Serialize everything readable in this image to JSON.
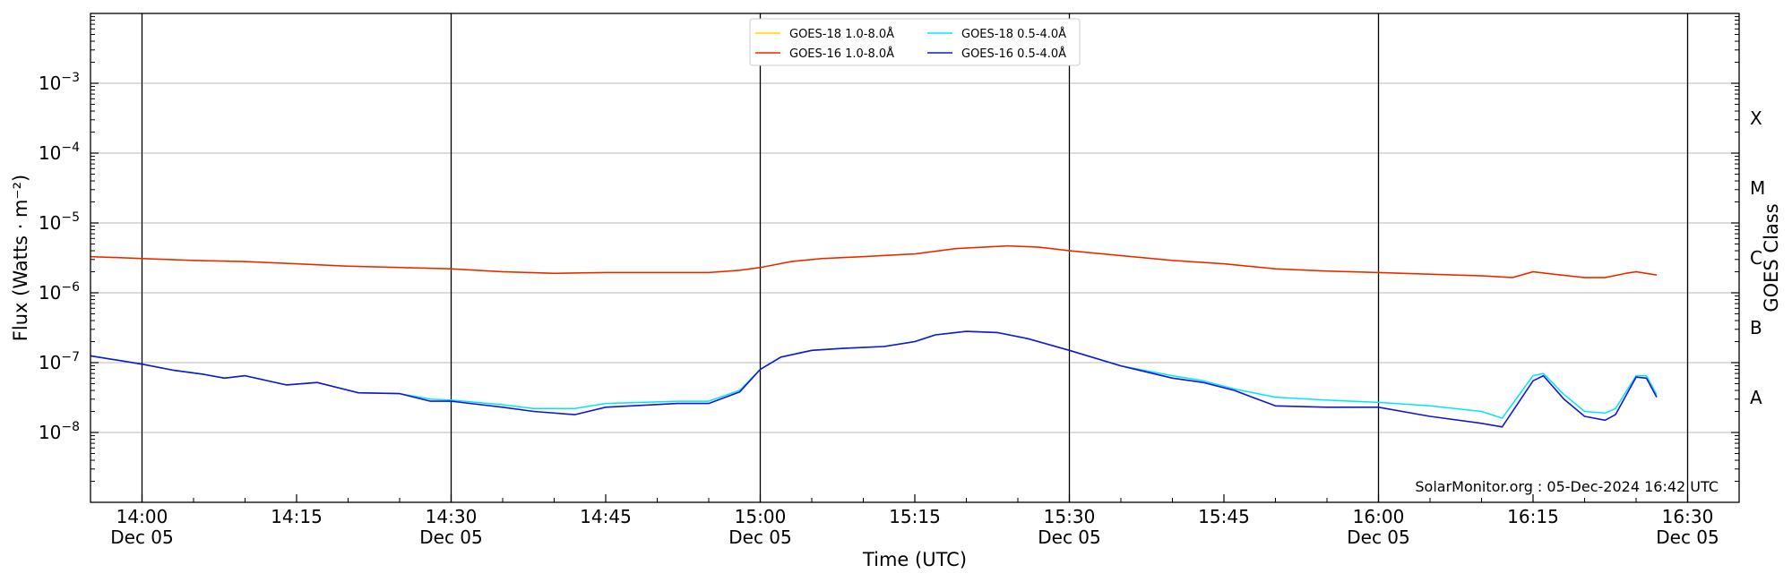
{
  "chart_data": {
    "type": "line",
    "xlabel": "Time (UTC)",
    "ylabel": "Flux (Watts · m⁻²)",
    "y_scale": "log",
    "ylim": [
      1e-09,
      0.01
    ],
    "xlim": [
      "2024-12-05T13:55",
      "2024-12-05T16:35"
    ],
    "y_ticks": [
      {
        "value": 1e-08,
        "label_base": "10",
        "label_exp": "−8"
      },
      {
        "value": 1e-07,
        "label_base": "10",
        "label_exp": "−7"
      },
      {
        "value": 1e-06,
        "label_base": "10",
        "label_exp": "−6"
      },
      {
        "value": 1e-05,
        "label_base": "10",
        "label_exp": "−5"
      },
      {
        "value": 0.0001,
        "label_base": "10",
        "label_exp": "−4"
      },
      {
        "value": 0.001,
        "label_base": "10",
        "label_exp": "−3"
      }
    ],
    "x_ticks": [
      {
        "time": "2024-12-05T14:00",
        "label": "14:00",
        "sublabel": "Dec 05"
      },
      {
        "time": "2024-12-05T14:15",
        "label": "14:15",
        "sublabel": ""
      },
      {
        "time": "2024-12-05T14:30",
        "label": "14:30",
        "sublabel": "Dec 05"
      },
      {
        "time": "2024-12-05T14:45",
        "label": "14:45",
        "sublabel": ""
      },
      {
        "time": "2024-12-05T15:00",
        "label": "15:00",
        "sublabel": "Dec 05"
      },
      {
        "time": "2024-12-05T15:15",
        "label": "15:15",
        "sublabel": ""
      },
      {
        "time": "2024-12-05T15:30",
        "label": "15:30",
        "sublabel": "Dec 05"
      },
      {
        "time": "2024-12-05T15:45",
        "label": "15:45",
        "sublabel": ""
      },
      {
        "time": "2024-12-05T16:00",
        "label": "16:00",
        "sublabel": "Dec 05"
      },
      {
        "time": "2024-12-05T16:15",
        "label": "16:15",
        "sublabel": ""
      },
      {
        "time": "2024-12-05T16:30",
        "label": "16:30",
        "sublabel": "Dec 05"
      }
    ],
    "vertical_lines": [
      "2024-12-05T14:00",
      "2024-12-05T14:30",
      "2024-12-05T15:00",
      "2024-12-05T15:30",
      "2024-12-05T16:00",
      "2024-12-05T16:30"
    ],
    "horizontal_grid": true,
    "right_axis": {
      "label": "GOES Class",
      "classes": [
        {
          "name": "A",
          "flux": 3.16e-08
        },
        {
          "name": "B",
          "flux": 3.16e-07
        },
        {
          "name": "C",
          "flux": 3.16e-06
        },
        {
          "name": "M",
          "flux": 3.16e-05
        },
        {
          "name": "X",
          "flux": 0.000316
        }
      ]
    },
    "legend": {
      "placement": "top-center",
      "columns": 2
    },
    "annotation": "SolarMonitor.org : 05-Dec-2024 16:42 UTC",
    "series": [
      {
        "name": "GOES-18 1.0-8.0Å",
        "color": "#ffd700",
        "width": 1.5,
        "x": [
          "2024-12-05T13:55",
          "2024-12-05T14:00",
          "2024-12-05T14:05",
          "2024-12-05T14:10",
          "2024-12-05T14:15",
          "2024-12-05T14:20",
          "2024-12-05T14:25",
          "2024-12-05T14:30",
          "2024-12-05T14:35",
          "2024-12-05T14:40",
          "2024-12-05T14:45",
          "2024-12-05T14:50",
          "2024-12-05T14:55",
          "2024-12-05T14:58",
          "2024-12-05T15:00",
          "2024-12-05T15:03",
          "2024-12-05T15:06",
          "2024-12-05T15:10",
          "2024-12-05T15:15",
          "2024-12-05T15:19",
          "2024-12-05T15:24",
          "2024-12-05T15:27",
          "2024-12-05T15:30",
          "2024-12-05T15:35",
          "2024-12-05T15:40",
          "2024-12-05T15:45",
          "2024-12-05T15:50",
          "2024-12-05T15:55",
          "2024-12-05T16:00",
          "2024-12-05T16:05",
          "2024-12-05T16:10",
          "2024-12-05T16:13",
          "2024-12-05T16:15",
          "2024-12-05T16:17",
          "2024-12-05T16:20",
          "2024-12-05T16:22",
          "2024-12-05T16:24",
          "2024-12-05T16:25",
          "2024-12-05T16:27"
        ],
        "y": [
          3.3e-06,
          3.1e-06,
          2.9e-06,
          2.8e-06,
          2.6e-06,
          2.4e-06,
          2.3e-06,
          2.2e-06,
          2e-06,
          1.9e-06,
          1.95e-06,
          1.95e-06,
          1.95e-06,
          2.1e-06,
          2.3e-06,
          2.8e-06,
          3.1e-06,
          3.3e-06,
          3.6e-06,
          4.3e-06,
          4.7e-06,
          4.5e-06,
          4e-06,
          3.4e-06,
          2.9e-06,
          2.6e-06,
          2.2e-06,
          2.05e-06,
          1.95e-06,
          1.85e-06,
          1.75e-06,
          1.65e-06,
          2e-06,
          1.85e-06,
          1.65e-06,
          1.65e-06,
          1.9e-06,
          2e-06,
          1.8e-06
        ]
      },
      {
        "name": "GOES-16 1.0-8.0Å",
        "color": "#ee2200",
        "width": 1.5,
        "x": [
          "2024-12-05T13:55",
          "2024-12-05T14:00",
          "2024-12-05T14:05",
          "2024-12-05T14:10",
          "2024-12-05T14:15",
          "2024-12-05T14:20",
          "2024-12-05T14:25",
          "2024-12-05T14:30",
          "2024-12-05T14:35",
          "2024-12-05T14:40",
          "2024-12-05T14:45",
          "2024-12-05T14:50",
          "2024-12-05T14:55",
          "2024-12-05T14:58",
          "2024-12-05T15:00",
          "2024-12-05T15:03",
          "2024-12-05T15:06",
          "2024-12-05T15:10",
          "2024-12-05T15:15",
          "2024-12-05T15:19",
          "2024-12-05T15:24",
          "2024-12-05T15:27",
          "2024-12-05T15:30",
          "2024-12-05T15:35",
          "2024-12-05T15:40",
          "2024-12-05T15:45",
          "2024-12-05T15:50",
          "2024-12-05T15:55",
          "2024-12-05T16:00",
          "2024-12-05T16:05",
          "2024-12-05T16:10",
          "2024-12-05T16:13",
          "2024-12-05T16:15",
          "2024-12-05T16:17",
          "2024-12-05T16:20",
          "2024-12-05T16:22",
          "2024-12-05T16:24",
          "2024-12-05T16:25",
          "2024-12-05T16:27"
        ],
        "y": [
          3.3e-06,
          3.1e-06,
          2.9e-06,
          2.8e-06,
          2.6e-06,
          2.4e-06,
          2.3e-06,
          2.2e-06,
          2e-06,
          1.9e-06,
          1.95e-06,
          1.95e-06,
          1.95e-06,
          2.1e-06,
          2.3e-06,
          2.8e-06,
          3.1e-06,
          3.3e-06,
          3.6e-06,
          4.3e-06,
          4.7e-06,
          4.5e-06,
          4e-06,
          3.4e-06,
          2.9e-06,
          2.6e-06,
          2.2e-06,
          2.05e-06,
          1.95e-06,
          1.85e-06,
          1.75e-06,
          1.65e-06,
          2e-06,
          1.85e-06,
          1.65e-06,
          1.65e-06,
          1.9e-06,
          2e-06,
          1.8e-06
        ]
      },
      {
        "name": "GOES-18 0.5-4.0Å",
        "color": "#00e5ff",
        "width": 1.5,
        "x": [
          "2024-12-05T13:55",
          "2024-12-05T14:00",
          "2024-12-05T14:03",
          "2024-12-05T14:06",
          "2024-12-05T14:08",
          "2024-12-05T14:10",
          "2024-12-05T14:14",
          "2024-12-05T14:17",
          "2024-12-05T14:21",
          "2024-12-05T14:25",
          "2024-12-05T14:28",
          "2024-12-05T14:30",
          "2024-12-05T14:35",
          "2024-12-05T14:38",
          "2024-12-05T14:42",
          "2024-12-05T14:45",
          "2024-12-05T14:52",
          "2024-12-05T14:55",
          "2024-12-05T14:58",
          "2024-12-05T15:00",
          "2024-12-05T15:02",
          "2024-12-05T15:05",
          "2024-12-05T15:08",
          "2024-12-05T15:12",
          "2024-12-05T15:15",
          "2024-12-05T15:17",
          "2024-12-05T15:20",
          "2024-12-05T15:23",
          "2024-12-05T15:26",
          "2024-12-05T15:30",
          "2024-12-05T15:35",
          "2024-12-05T15:40",
          "2024-12-05T15:43",
          "2024-12-05T15:46",
          "2024-12-05T15:50",
          "2024-12-05T15:55",
          "2024-12-05T16:00",
          "2024-12-05T16:05",
          "2024-12-05T16:10",
          "2024-12-05T16:12",
          "2024-12-05T16:15",
          "2024-12-05T16:16",
          "2024-12-05T16:18",
          "2024-12-05T16:20",
          "2024-12-05T16:22",
          "2024-12-05T16:23",
          "2024-12-05T16:25",
          "2024-12-05T16:26",
          "2024-12-05T16:27"
        ],
        "y": [
          1.25e-07,
          9.5e-08,
          7.8e-08,
          6.8e-08,
          6e-08,
          6.5e-08,
          4.8e-08,
          5.2e-08,
          3.7e-08,
          3.6e-08,
          3e-08,
          2.9e-08,
          2.5e-08,
          2.2e-08,
          2.2e-08,
          2.6e-08,
          2.8e-08,
          2.8e-08,
          4e-08,
          8e-08,
          1.2e-07,
          1.5e-07,
          1.6e-07,
          1.7e-07,
          2e-07,
          2.5e-07,
          2.8e-07,
          2.7e-07,
          2.2e-07,
          1.5e-07,
          9e-08,
          6.5e-08,
          5.5e-08,
          4.2e-08,
          3.2e-08,
          2.9e-08,
          2.7e-08,
          2.4e-08,
          2e-08,
          1.6e-08,
          6.5e-08,
          7e-08,
          3.5e-08,
          2e-08,
          1.9e-08,
          2.2e-08,
          6.5e-08,
          6.5e-08,
          3.5e-08
        ]
      },
      {
        "name": "GOES-16 0.5-4.0Å",
        "color": "#1515d6",
        "width": 1.6,
        "x": [
          "2024-12-05T13:55",
          "2024-12-05T14:00",
          "2024-12-05T14:03",
          "2024-12-05T14:06",
          "2024-12-05T14:08",
          "2024-12-05T14:10",
          "2024-12-05T14:14",
          "2024-12-05T14:17",
          "2024-12-05T14:21",
          "2024-12-05T14:25",
          "2024-12-05T14:28",
          "2024-12-05T14:30",
          "2024-12-05T14:35",
          "2024-12-05T14:38",
          "2024-12-05T14:42",
          "2024-12-05T14:45",
          "2024-12-05T14:52",
          "2024-12-05T14:55",
          "2024-12-05T14:58",
          "2024-12-05T15:00",
          "2024-12-05T15:02",
          "2024-12-05T15:05",
          "2024-12-05T15:08",
          "2024-12-05T15:12",
          "2024-12-05T15:15",
          "2024-12-05T15:17",
          "2024-12-05T15:20",
          "2024-12-05T15:23",
          "2024-12-05T15:26",
          "2024-12-05T15:30",
          "2024-12-05T15:35",
          "2024-12-05T15:40",
          "2024-12-05T15:43",
          "2024-12-05T15:46",
          "2024-12-05T15:50",
          "2024-12-05T15:55",
          "2024-12-05T16:00",
          "2024-12-05T16:05",
          "2024-12-05T16:10",
          "2024-12-05T16:12",
          "2024-12-05T16:15",
          "2024-12-05T16:16",
          "2024-12-05T16:18",
          "2024-12-05T16:20",
          "2024-12-05T16:22",
          "2024-12-05T16:23",
          "2024-12-05T16:25",
          "2024-12-05T16:26",
          "2024-12-05T16:27"
        ],
        "y": [
          1.25e-07,
          9.5e-08,
          7.8e-08,
          6.8e-08,
          6e-08,
          6.5e-08,
          4.8e-08,
          5.2e-08,
          3.7e-08,
          3.6e-08,
          2.8e-08,
          2.8e-08,
          2.3e-08,
          2e-08,
          1.8e-08,
          2.3e-08,
          2.6e-08,
          2.6e-08,
          3.8e-08,
          8e-08,
          1.2e-07,
          1.5e-07,
          1.6e-07,
          1.7e-07,
          2e-07,
          2.5e-07,
          2.8e-07,
          2.7e-07,
          2.2e-07,
          1.5e-07,
          9e-08,
          6e-08,
          5.2e-08,
          4e-08,
          2.4e-08,
          2.3e-08,
          2.3e-08,
          1.7e-08,
          1.35e-08,
          1.2e-08,
          5.5e-08,
          6.5e-08,
          3e-08,
          1.7e-08,
          1.5e-08,
          1.8e-08,
          6.2e-08,
          6e-08,
          3.2e-08
        ]
      }
    ]
  }
}
